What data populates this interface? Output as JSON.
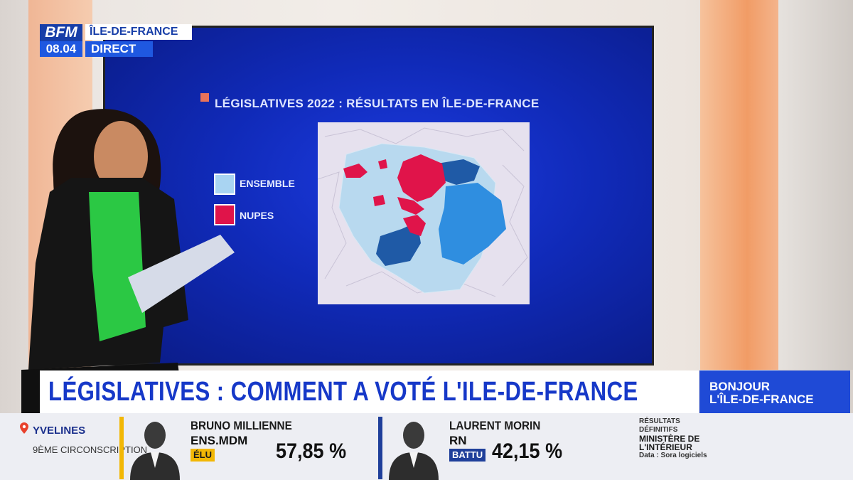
{
  "broadcast": {
    "logo": "BFM",
    "time": "08.04",
    "channel": "ÎLE-DE-FRANCE",
    "live": "DIRECT"
  },
  "screen": {
    "title": "LÉGISLATIVES 2022 : RÉSULTATS EN ÎLE-DE-FRANCE",
    "legend": [
      {
        "label": "ENSEMBLE",
        "color": "#a9d4f2"
      },
      {
        "label": "NUPES",
        "color": "#e0144a"
      }
    ]
  },
  "lower_third": {
    "headline": "LÉGISLATIVES : COMMENT A VOTÉ L'ILE-DE-FRANCE",
    "show_line1": "BONJOUR",
    "show_line2": "L'ÎLE-DE-FRANCE"
  },
  "results": {
    "region": "YVELINES",
    "circonscription": "9ÈME CIRCONSCRIPTION",
    "candidates": [
      {
        "name": "BRUNO MILLIENNE",
        "party": "ENS.MDM",
        "status": "ÉLU",
        "percent": "57,85 %",
        "status_color": "#f2b705",
        "accent": "#f2b705"
      },
      {
        "name": "LAURENT MORIN",
        "party": "RN",
        "status": "BATTU",
        "percent": "42,15 %",
        "status_color": "#1f3f9a",
        "accent": "#1f3f9a"
      }
    ],
    "source_lines": [
      "RÉSULTATS",
      "DÉFINITIFS",
      "MINISTÈRE DE",
      "L'INTÉRIEUR",
      "Data : Sora logiciels"
    ]
  }
}
